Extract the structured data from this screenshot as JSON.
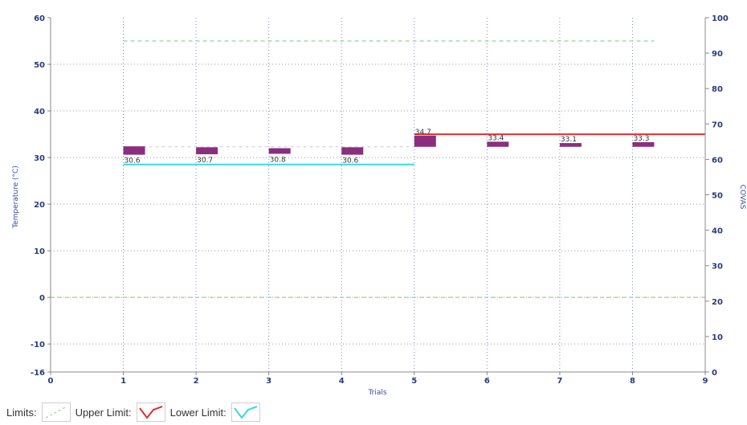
{
  "chart_data": {
    "type": "bar",
    "xlabel": "Trials",
    "ylabel": "Temperature (°C)",
    "y2label": "COVAS",
    "xlim": [
      0,
      9
    ],
    "ylim": [
      -16,
      60
    ],
    "y2lim": [
      0,
      100
    ],
    "x_ticks": [
      "0",
      "1",
      "2",
      "3",
      "4",
      "5",
      "6",
      "7",
      "8",
      "9"
    ],
    "y_ticks": [
      "60",
      "50",
      "40",
      "30",
      "20",
      "10",
      "0",
      "-10",
      "-16"
    ],
    "y2_ticks": [
      "100",
      "90",
      "80",
      "70",
      "60",
      "50",
      "40",
      "30",
      "20",
      "10",
      "0"
    ],
    "grid": true,
    "bars": [
      {
        "x": 1,
        "value": 30.6,
        "label": "30.6",
        "top": 32.4
      },
      {
        "x": 2,
        "value": 30.7,
        "label": "30.7",
        "top": 32.2
      },
      {
        "x": 3,
        "value": 30.8,
        "label": "30.8",
        "top": 32.0
      },
      {
        "x": 4,
        "value": 30.6,
        "label": "30.6",
        "top": 32.2
      },
      {
        "x": 5,
        "value": 34.7,
        "label": "34.7",
        "top": 34.7,
        "bottom": 32.3
      },
      {
        "x": 6,
        "value": 33.4,
        "label": "33.4",
        "top": 33.4,
        "bottom": 32.3
      },
      {
        "x": 7,
        "value": 33.1,
        "label": "33.1",
        "top": 33.1,
        "bottom": 32.3
      },
      {
        "x": 8,
        "value": 33.3,
        "label": "33.3",
        "top": 33.3,
        "bottom": 32.3
      }
    ],
    "bar_color": "#8b2e7f",
    "lines": {
      "limits_top": {
        "y": 55,
        "x_range": [
          1,
          8.3
        ],
        "color": "#8fd88f"
      },
      "limits_zero": {
        "y": 0,
        "x_range": [
          0,
          9
        ],
        "color": "#8fd88f"
      },
      "limits_mid": {
        "y": 32.3,
        "x_range": [
          1,
          5
        ],
        "color": "#cccccc"
      },
      "upper_limit": {
        "y": 35,
        "x_range": [
          5,
          9
        ],
        "color": "#e03030"
      },
      "lower_limit": {
        "y": 28.5,
        "x_range": [
          1,
          5
        ],
        "color": "#38d8e8"
      }
    },
    "legend": {
      "placement": "bottom-left",
      "items": [
        {
          "label": "Limits:",
          "style": "dashed",
          "color": "#8fd88f"
        },
        {
          "label": "Upper Limit:",
          "style": "zigzag",
          "color": "#e03030"
        },
        {
          "label": "Lower Limit:",
          "style": "zigzag",
          "color": "#38d8e8"
        }
      ]
    }
  }
}
